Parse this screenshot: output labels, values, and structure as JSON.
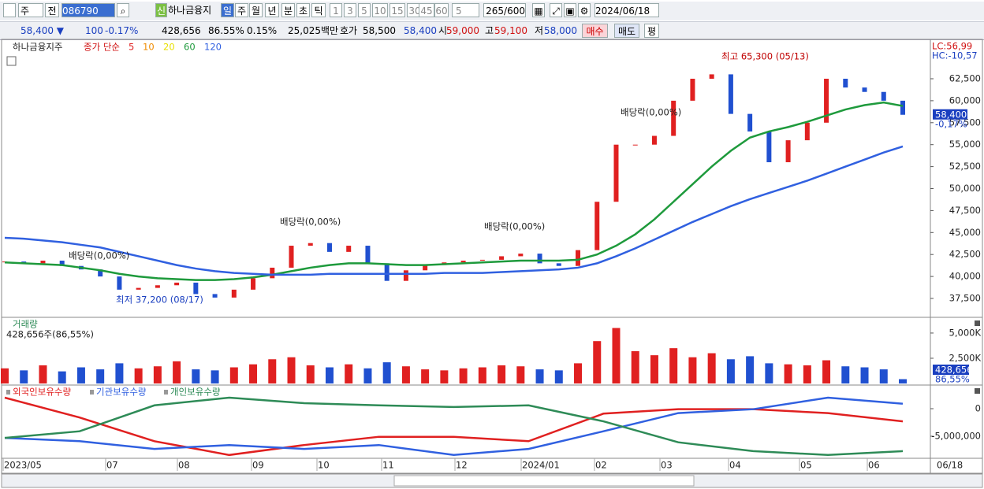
{
  "toolbar": {
    "period": "주",
    "prev": "전",
    "code": "086790",
    "new_badge": "신",
    "name": "하나금융지",
    "intervals": [
      "일",
      "주",
      "월",
      "년",
      "분",
      "초",
      "틱"
    ],
    "minutes": [
      "1",
      "3",
      "5",
      "10",
      "15",
      "30",
      "45",
      "60"
    ],
    "count_select": "5",
    "visible_count": "265",
    "total_count": "/600",
    "date": "2024/06/18"
  },
  "quote": {
    "price": "58,400 ▼",
    "change": "100",
    "change_rate": "-0.17%",
    "volume": "428,656",
    "volume_ratio": "86.55%",
    "turnover": "0.15%",
    "amount": "25,025백만",
    "ask_label": "호가",
    "ask": "58,500",
    "bid": "58,400",
    "open_label": "시",
    "open": "59,000",
    "high_label": "고",
    "high": "59,100",
    "low_label": "저",
    "low": "58,000",
    "buy": "매수",
    "sell": "매도",
    "avg": "평"
  },
  "chart_data": [
    {
      "type": "candlestick",
      "title": "하나금융지주",
      "legend_prefix": "종가 단순",
      "color_up": "#e02020",
      "color_down": "#2050d0",
      "values": [
        41700,
        41500,
        41800,
        41200,
        40800,
        40000,
        38500,
        38700,
        39000,
        39300,
        38000,
        37600,
        38500,
        39800,
        41000,
        43500,
        43800,
        42800,
        43500,
        41500,
        39500,
        40700,
        41300,
        41600,
        41800,
        41900,
        42300,
        42600,
        41500,
        41200,
        43000,
        48500,
        55000,
        55000,
        56000,
        60000,
        62500,
        63000,
        58500,
        56500,
        53000,
        55500,
        57500,
        62500,
        61500,
        61000,
        60000,
        58400
      ],
      "moving_averages": [
        {
          "name": 5,
          "color": "#e02020"
        },
        {
          "name": 10,
          "color": "#f08c00"
        },
        {
          "name": 20,
          "color": "#e8e000"
        },
        {
          "name": 60,
          "color": "#1e9a3c",
          "values": [
            41600,
            41500,
            41400,
            41300,
            41000,
            40700,
            40300,
            40000,
            39800,
            39700,
            39600,
            39600,
            39700,
            39900,
            40200,
            40600,
            41000,
            41300,
            41500,
            41500,
            41400,
            41300,
            41300,
            41400,
            41500,
            41600,
            41700,
            41800,
            41800,
            41800,
            41900,
            42500,
            43500,
            44800,
            46500,
            48500,
            50500,
            52500,
            54300,
            55800,
            56500,
            57000,
            57600,
            58300,
            59000,
            59500,
            59800,
            59400
          ]
        },
        {
          "name": 120,
          "color": "#3060e0",
          "values": [
            44400,
            44300,
            44100,
            43900,
            43600,
            43300,
            42800,
            42300,
            41800,
            41300,
            40900,
            40600,
            40400,
            40300,
            40200,
            40200,
            40200,
            40300,
            40300,
            40300,
            40300,
            40300,
            40300,
            40400,
            40400,
            40400,
            40500,
            40600,
            40700,
            40800,
            41000,
            41500,
            42300,
            43200,
            44200,
            45200,
            46200,
            47100,
            48000,
            48800,
            49500,
            50200,
            50900,
            51700,
            52500,
            53300,
            54100,
            54800
          ]
        }
      ],
      "ylim": [
        35440,
        66800
      ],
      "yticks": [
        {
          "value": 62500,
          "label": "62,500"
        },
        {
          "value": 60000,
          "label": "60,000"
        },
        {
          "value": 57500,
          "label": "57,500"
        },
        {
          "value": 55000,
          "label": "55,000"
        },
        {
          "value": 52500,
          "label": "52,500"
        },
        {
          "value": 50000,
          "label": "50,000"
        },
        {
          "value": 47500,
          "label": "47,500"
        },
        {
          "value": 45000,
          "label": "45,000"
        },
        {
          "value": 42500,
          "label": "42,500"
        },
        {
          "value": 40000,
          "label": "40,000"
        },
        {
          "value": 37500,
          "label": "37,500"
        }
      ],
      "annotations": [
        "최고 65,300 (05/13)",
        "최저 37,200 (08/17)",
        "배당락(0,00%)",
        "배당락(0,00%)",
        "배당락(0,00%)",
        "배당락(0,00%)"
      ],
      "lc": "LC:56,99",
      "hc": "HC:-10,57",
      "last_price": {
        "value": 58400,
        "label": "58,400"
      },
      "last_change": "-0,17%"
    },
    {
      "type": "bar",
      "title": "거래량",
      "subtitle": "428,656주(86,55%)",
      "values": [
        1500000,
        1300000,
        1800000,
        1200000,
        1600000,
        1400000,
        2000000,
        1500000,
        1700000,
        2200000,
        1400000,
        1300000,
        1600000,
        1900000,
        2400000,
        2600000,
        1800000,
        1600000,
        1900000,
        1500000,
        2100000,
        1700000,
        1400000,
        1300000,
        1500000,
        1600000,
        1800000,
        1700000,
        1400000,
        1300000,
        2000000,
        4200000,
        5500000,
        3200000,
        2800000,
        3500000,
        2600000,
        3000000,
        2400000,
        2700000,
        2000000,
        1900000,
        1800000,
        2300000,
        1700000,
        1600000,
        1400000,
        428656
      ],
      "ylim": [
        0,
        6400000
      ],
      "yticks": [
        {
          "value": 5000000,
          "label": "5,000K"
        },
        {
          "value": 2500000,
          "label": "2,500K"
        }
      ],
      "last": {
        "value": 428656,
        "label": "428,656"
      },
      "last_ratio": "86,55%"
    },
    {
      "type": "line",
      "series": [
        {
          "name": "외국인보유수량",
          "color": "#e02020",
          "values": [
            2000000,
            -1600000,
            -5900000,
            -8400000,
            -6600000,
            -5100000,
            -5100000,
            -5900000,
            -900000,
            -100000,
            -100000,
            -800000,
            -2300000
          ]
        },
        {
          "name": "기관보유수량",
          "color": "#3060e0",
          "values": [
            -5300000,
            -5900000,
            -7300000,
            -6600000,
            -7300000,
            -6600000,
            -8400000,
            -7300000,
            -4100000,
            -800000,
            -100000,
            2000000,
            900000
          ]
        },
        {
          "name": "개인보유수량",
          "color": "#2e8b57",
          "values": [
            -5300000,
            -4100000,
            600000,
            2000000,
            1000000,
            600000,
            300000,
            600000,
            -2300000,
            -6100000,
            -7700000,
            -8400000,
            -7700000
          ]
        }
      ],
      "ylim": [
        -9000000,
        4140000
      ],
      "yticks": [
        0,
        {
          "value": -5000000,
          "label": "-5,000,000"
        }
      ],
      "x_axis_labels": [
        "2023/05",
        "07",
        "08",
        "09",
        "10",
        "11",
        "12",
        "2024/01",
        "02",
        "03",
        "04",
        "05",
        "06"
      ],
      "x_end_label": "06/18"
    }
  ]
}
